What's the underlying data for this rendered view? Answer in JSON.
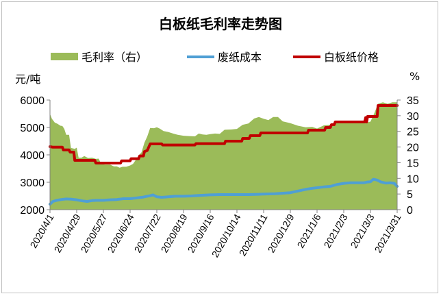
{
  "chart_data": {
    "type": "line+area",
    "title": "白板纸毛利率走势图",
    "legend": {
      "placement": "top",
      "entries": [
        {
          "name": "毛利率（右）",
          "color": "#9bbb59",
          "kind": "area"
        },
        {
          "name": "废纸成本",
          "color": "#4f9fd4",
          "kind": "line"
        },
        {
          "name": "白板纸价格",
          "color": "#c00000",
          "kind": "line"
        }
      ]
    },
    "y_left": {
      "unit": "元/吨",
      "min": 2000,
      "max": 6000,
      "ticks": [
        "2000",
        "3000",
        "4000",
        "5000",
        "6000"
      ]
    },
    "y_right": {
      "unit": "%",
      "min": 0,
      "max": 35,
      "ticks": [
        "0",
        "5",
        "10",
        "15",
        "20",
        "25",
        "30",
        "35"
      ]
    },
    "x_ticks": [
      "2020/4/1",
      "2020/4/29",
      "2020/5/27",
      "2020/6/24",
      "2020/7/22",
      "2020/8/19",
      "2020/9/16",
      "2020/10/14",
      "2020/11/11",
      "2020/12/9",
      "2021/1/6",
      "2021/2/3",
      "2021/3/3",
      "2021/3/31"
    ],
    "x_start": "2020/4/1",
    "x_end": "2021/3/31",
    "grid": false,
    "series": [
      {
        "name": "毛利率（右）",
        "axis": "right",
        "points": [
          [
            "2020/4/1",
            30.6
          ],
          [
            "2020/4/3",
            29.0
          ],
          [
            "2020/4/6",
            27.8
          ],
          [
            "2020/4/9",
            27.4
          ],
          [
            "2020/4/12",
            26.8
          ],
          [
            "2020/4/14",
            26.7
          ],
          [
            "2020/4/16",
            25.8
          ],
          [
            "2020/4/18",
            23.9
          ],
          [
            "2020/4/21",
            23.9
          ],
          [
            "2020/4/23",
            19.7
          ],
          [
            "2020/4/27",
            19.4
          ],
          [
            "2020/4/29",
            19.8
          ],
          [
            "2020/5/1",
            16.6
          ],
          [
            "2020/5/4",
            16.6
          ],
          [
            "2020/5/7",
            17.1
          ],
          [
            "2020/5/11",
            16.5
          ],
          [
            "2020/5/15",
            16.6
          ],
          [
            "2020/5/19",
            16.2
          ],
          [
            "2020/5/22",
            16.3
          ],
          [
            "2020/5/25",
            14.5
          ],
          [
            "2020/5/29",
            14.4
          ],
          [
            "2020/6/3",
            14.4
          ],
          [
            "2020/6/7",
            13.8
          ],
          [
            "2020/6/10",
            13.8
          ],
          [
            "2020/6/13",
            13.4
          ],
          [
            "2020/6/16",
            13.7
          ],
          [
            "2020/6/20",
            13.7
          ],
          [
            "2020/6/24",
            14.1
          ],
          [
            "2020/6/27",
            14.6
          ],
          [
            "2020/6/30",
            15.9
          ],
          [
            "2020/7/3",
            17.3
          ],
          [
            "2020/7/6",
            18.3
          ],
          [
            "2020/7/9",
            21.4
          ],
          [
            "2020/7/12",
            23.4
          ],
          [
            "2020/7/15",
            26.1
          ],
          [
            "2020/7/19",
            26.0
          ],
          [
            "2020/7/22",
            26.3
          ],
          [
            "2020/7/25",
            25.9
          ],
          [
            "2020/7/29",
            25.1
          ],
          [
            "2020/8/3",
            24.8
          ],
          [
            "2020/8/8",
            24.3
          ],
          [
            "2020/8/13",
            23.9
          ],
          [
            "2020/8/19",
            23.6
          ],
          [
            "2020/8/25",
            23.5
          ],
          [
            "2020/8/31",
            23.4
          ],
          [
            "2020/9/4",
            24.3
          ],
          [
            "2020/9/8",
            24.0
          ],
          [
            "2020/9/12",
            23.9
          ],
          [
            "2020/9/16",
            24.1
          ],
          [
            "2020/9/21",
            24.3
          ],
          [
            "2020/9/26",
            24.2
          ],
          [
            "2020/10/1",
            25.5
          ],
          [
            "2020/10/8",
            25.6
          ],
          [
            "2020/10/14",
            25.8
          ],
          [
            "2020/10/20",
            27.1
          ],
          [
            "2020/10/26",
            27.5
          ],
          [
            "2020/11/1",
            29.1
          ],
          [
            "2020/11/6",
            29.6
          ],
          [
            "2020/11/11",
            29.0
          ],
          [
            "2020/11/16",
            28.6
          ],
          [
            "2020/11/21",
            29.6
          ],
          [
            "2020/11/26",
            29.6
          ],
          [
            "2020/12/1",
            28.2
          ],
          [
            "2020/12/9",
            27.6
          ],
          [
            "2020/12/17",
            26.8
          ],
          [
            "2020/12/25",
            26.3
          ],
          [
            "2021/1/1",
            26.4
          ],
          [
            "2021/1/6",
            25.9
          ],
          [
            "2021/1/13",
            26.9
          ],
          [
            "2021/1/20",
            27.1
          ],
          [
            "2021/1/27",
            27.8
          ],
          [
            "2021/2/3",
            27.9
          ],
          [
            "2021/2/10",
            27.8
          ],
          [
            "2021/2/17",
            28.2
          ],
          [
            "2021/2/24",
            28.5
          ],
          [
            "2021/2/28",
            27.9
          ],
          [
            "2021/3/3",
            28.1
          ],
          [
            "2021/3/7",
            30.8
          ],
          [
            "2021/3/11",
            33.8
          ],
          [
            "2021/3/16",
            34.3
          ],
          [
            "2021/3/21",
            33.8
          ],
          [
            "2021/3/26",
            34.3
          ],
          [
            "2021/3/31",
            34.3
          ]
        ]
      },
      {
        "name": "废纸成本",
        "axis": "left",
        "points": [
          [
            "2020/4/1",
            2200
          ],
          [
            "2020/4/4",
            2300
          ],
          [
            "2020/4/8",
            2340
          ],
          [
            "2020/4/13",
            2370
          ],
          [
            "2020/4/18",
            2390
          ],
          [
            "2020/4/24",
            2380
          ],
          [
            "2020/4/29",
            2360
          ],
          [
            "2020/5/5",
            2320
          ],
          [
            "2020/5/10",
            2300
          ],
          [
            "2020/5/15",
            2330
          ],
          [
            "2020/5/20",
            2340
          ],
          [
            "2020/5/27",
            2340
          ],
          [
            "2020/6/3",
            2360
          ],
          [
            "2020/6/10",
            2370
          ],
          [
            "2020/6/17",
            2400
          ],
          [
            "2020/6/24",
            2400
          ],
          [
            "2020/7/1",
            2430
          ],
          [
            "2020/7/8",
            2460
          ],
          [
            "2020/7/15",
            2510
          ],
          [
            "2020/7/18",
            2540
          ],
          [
            "2020/7/22",
            2470
          ],
          [
            "2020/7/27",
            2450
          ],
          [
            "2020/8/3",
            2470
          ],
          [
            "2020/8/10",
            2490
          ],
          [
            "2020/8/19",
            2490
          ],
          [
            "2020/8/27",
            2500
          ],
          [
            "2020/9/4",
            2520
          ],
          [
            "2020/9/16",
            2540
          ],
          [
            "2020/9/26",
            2550
          ],
          [
            "2020/10/6",
            2550
          ],
          [
            "2020/10/14",
            2550
          ],
          [
            "2020/10/26",
            2550
          ],
          [
            "2020/11/5",
            2560
          ],
          [
            "2020/11/11",
            2570
          ],
          [
            "2020/11/23",
            2580
          ],
          [
            "2020/12/1",
            2600
          ],
          [
            "2020/12/9",
            2620
          ],
          [
            "2020/12/17",
            2680
          ],
          [
            "2020/12/25",
            2740
          ],
          [
            "2021/1/1",
            2780
          ],
          [
            "2021/1/6",
            2800
          ],
          [
            "2021/1/13",
            2830
          ],
          [
            "2021/1/20",
            2850
          ],
          [
            "2021/1/27",
            2920
          ],
          [
            "2021/2/3",
            2960
          ],
          [
            "2021/2/10",
            2980
          ],
          [
            "2021/2/17",
            2980
          ],
          [
            "2021/2/24",
            2980
          ],
          [
            "2021/2/28",
            3010
          ],
          [
            "2021/3/3",
            3020
          ],
          [
            "2021/3/6",
            3110
          ],
          [
            "2021/3/10",
            3080
          ],
          [
            "2021/3/14",
            3010
          ],
          [
            "2021/3/19",
            2970
          ],
          [
            "2021/3/24",
            2980
          ],
          [
            "2021/3/28",
            2960
          ],
          [
            "2021/3/31",
            2850
          ]
        ]
      },
      {
        "name": "白板纸价格",
        "axis": "left",
        "points": [
          [
            "2020/4/1",
            4300
          ],
          [
            "2020/4/4",
            4280
          ],
          [
            "2020/4/14",
            4280
          ],
          [
            "2020/4/15",
            4180
          ],
          [
            "2020/4/21",
            4180
          ],
          [
            "2020/4/22",
            4100
          ],
          [
            "2020/4/26",
            4100
          ],
          [
            "2020/4/27",
            3800
          ],
          [
            "2020/5/18",
            3800
          ],
          [
            "2020/5/19",
            3700
          ],
          [
            "2020/6/14",
            3700
          ],
          [
            "2020/6/15",
            3780
          ],
          [
            "2020/6/24",
            3780
          ],
          [
            "2020/6/25",
            3860
          ],
          [
            "2020/7/3",
            3860
          ],
          [
            "2020/7/4",
            3960
          ],
          [
            "2020/7/8",
            3960
          ],
          [
            "2020/7/9",
            4120
          ],
          [
            "2020/7/12",
            4160
          ],
          [
            "2020/7/15",
            4400
          ],
          [
            "2020/7/27",
            4400
          ],
          [
            "2020/7/28",
            4360
          ],
          [
            "2020/8/31",
            4360
          ],
          [
            "2020/9/1",
            4410
          ],
          [
            "2020/10/1",
            4410
          ],
          [
            "2020/10/2",
            4500
          ],
          [
            "2020/10/19",
            4500
          ],
          [
            "2020/10/20",
            4600
          ],
          [
            "2020/10/27",
            4600
          ],
          [
            "2020/10/28",
            4700
          ],
          [
            "2020/11/7",
            4700
          ],
          [
            "2020/11/8",
            4800
          ],
          [
            "2020/12/27",
            4800
          ],
          [
            "2020/12/28",
            4900
          ],
          [
            "2021/1/14",
            4900
          ],
          [
            "2021/1/15",
            5000
          ],
          [
            "2021/1/20",
            5000
          ],
          [
            "2021/1/21",
            5100
          ],
          [
            "2021/1/24",
            5100
          ],
          [
            "2021/1/25",
            5200
          ],
          [
            "2021/2/25",
            5200
          ],
          [
            "2021/2/26",
            5360
          ],
          [
            "2021/2/27",
            5200
          ],
          [
            "2021/2/28",
            5400
          ],
          [
            "2021/3/10",
            5400
          ],
          [
            "2021/3/11",
            5800
          ],
          [
            "2021/3/31",
            5800
          ]
        ]
      }
    ]
  }
}
